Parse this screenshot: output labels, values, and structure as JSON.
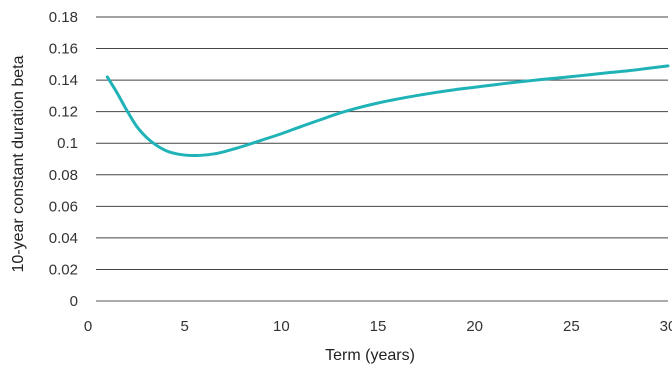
{
  "chart_data": {
    "type": "line",
    "title": "",
    "xlabel": "Term (years)",
    "ylabel": "10-year constant duration beta",
    "xlim": [
      0,
      30
    ],
    "ylim": [
      0,
      0.18
    ],
    "x_ticks": [
      0,
      5,
      10,
      15,
      20,
      25,
      30
    ],
    "x_tick_labels": [
      "0",
      "5",
      "10",
      "15",
      "20",
      "25",
      "30"
    ],
    "y_ticks": [
      0,
      0.02,
      0.04,
      0.06,
      0.08,
      0.1,
      0.12,
      0.14,
      0.16,
      0.18
    ],
    "y_tick_labels": [
      "0",
      "0.02",
      "0.04",
      "0.06",
      "0.08",
      "0.1",
      "0.12",
      "0.14",
      "0.16",
      "0.18"
    ],
    "grid": "horizontal",
    "legend": "none",
    "series": [
      {
        "color": "#1fb3b8",
        "x": [
          1,
          1.5,
          2,
          2.5,
          3,
          3.5,
          4,
          4.5,
          5,
          5.5,
          6,
          6.5,
          7,
          7.5,
          8,
          9,
          10,
          11,
          12,
          13,
          14,
          15,
          16,
          17,
          18,
          19,
          20,
          21,
          22,
          23,
          24,
          25,
          26,
          27,
          28,
          29,
          30
        ],
        "y": [
          0.142,
          0.132,
          0.121,
          0.111,
          0.104,
          0.099,
          0.0955,
          0.0935,
          0.0925,
          0.0922,
          0.0925,
          0.0932,
          0.0945,
          0.0962,
          0.098,
          0.102,
          0.106,
          0.1105,
          0.1148,
          0.119,
          0.1225,
          0.1255,
          0.128,
          0.1302,
          0.1322,
          0.134,
          0.1355,
          0.137,
          0.1385,
          0.1398,
          0.141,
          0.1422,
          0.1435,
          0.1448,
          0.146,
          0.1475,
          0.149
        ]
      }
    ]
  }
}
